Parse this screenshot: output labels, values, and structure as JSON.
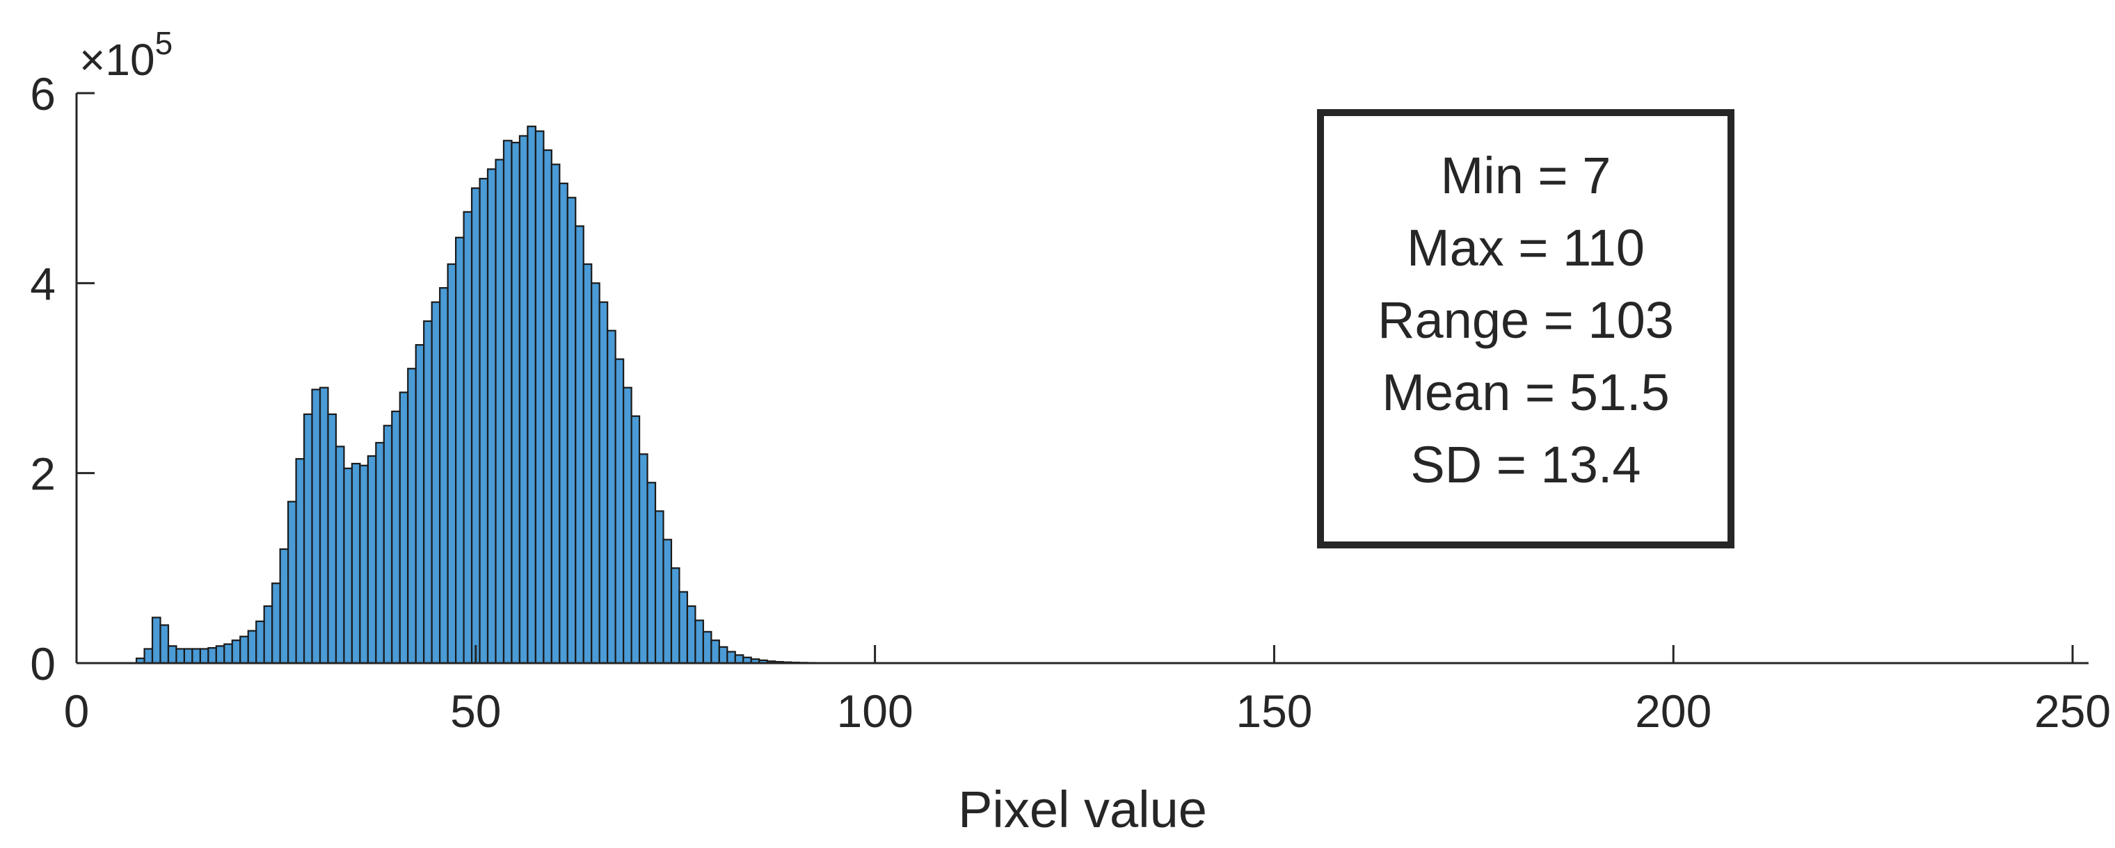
{
  "chart_data": {
    "type": "bar",
    "subtype": "histogram",
    "title": "",
    "xlabel": "Pixel value",
    "ylabel": "",
    "xlim": [
      0,
      252
    ],
    "ylim": [
      0,
      600000
    ],
    "xticks": [
      0,
      50,
      100,
      150,
      200,
      250
    ],
    "xtick_labels": [
      "0",
      "50",
      "100",
      "150",
      "200",
      "250"
    ],
    "yticks": [
      0,
      200000,
      400000,
      600000
    ],
    "ytick_labels": [
      "0",
      "2",
      "4",
      "6"
    ],
    "y_exponent_base": "×10",
    "y_exponent_power": "5",
    "bar_color": "#4a9bd6",
    "edge_color": "#1a1a1a",
    "grid": false,
    "bin_width": 1,
    "x": [
      8,
      9,
      10,
      11,
      12,
      13,
      14,
      15,
      16,
      17,
      18,
      19,
      20,
      21,
      22,
      23,
      24,
      25,
      26,
      27,
      28,
      29,
      30,
      31,
      32,
      33,
      34,
      35,
      36,
      37,
      38,
      39,
      40,
      41,
      42,
      43,
      44,
      45,
      46,
      47,
      48,
      49,
      50,
      51,
      52,
      53,
      54,
      55,
      56,
      57,
      58,
      59,
      60,
      61,
      62,
      63,
      64,
      65,
      66,
      67,
      68,
      69,
      70,
      71,
      72,
      73,
      74,
      75,
      76,
      77,
      78,
      79,
      80,
      81,
      82,
      83,
      84,
      85,
      86,
      87,
      88,
      89,
      90,
      91,
      92,
      93,
      94,
      95,
      96,
      97,
      98,
      99,
      100
    ],
    "values": [
      5000,
      15000,
      48000,
      40000,
      18000,
      15000,
      15000,
      15000,
      15000,
      16000,
      18000,
      20000,
      24000,
      28000,
      34000,
      44000,
      60000,
      84000,
      120000,
      170000,
      215000,
      262000,
      288000,
      290000,
      262000,
      228000,
      205000,
      210000,
      208000,
      218000,
      232000,
      250000,
      265000,
      285000,
      310000,
      335000,
      360000,
      380000,
      395000,
      420000,
      448000,
      475000,
      500000,
      510000,
      520000,
      530000,
      550000,
      548000,
      555000,
      565000,
      560000,
      540000,
      525000,
      505000,
      490000,
      460000,
      420000,
      400000,
      380000,
      350000,
      320000,
      290000,
      260000,
      220000,
      190000,
      160000,
      130000,
      100000,
      75000,
      60000,
      45000,
      33000,
      24000,
      17000,
      12000,
      8500,
      6000,
      4200,
      3000,
      2000,
      1400,
      1000,
      700,
      500,
      350,
      250,
      170,
      110,
      70,
      45,
      30,
      18,
      10
    ],
    "annotations": [
      "Min = 7",
      "Max = 110",
      "Range = 103",
      "Mean = 51.5",
      "SD = 13.4"
    ]
  }
}
